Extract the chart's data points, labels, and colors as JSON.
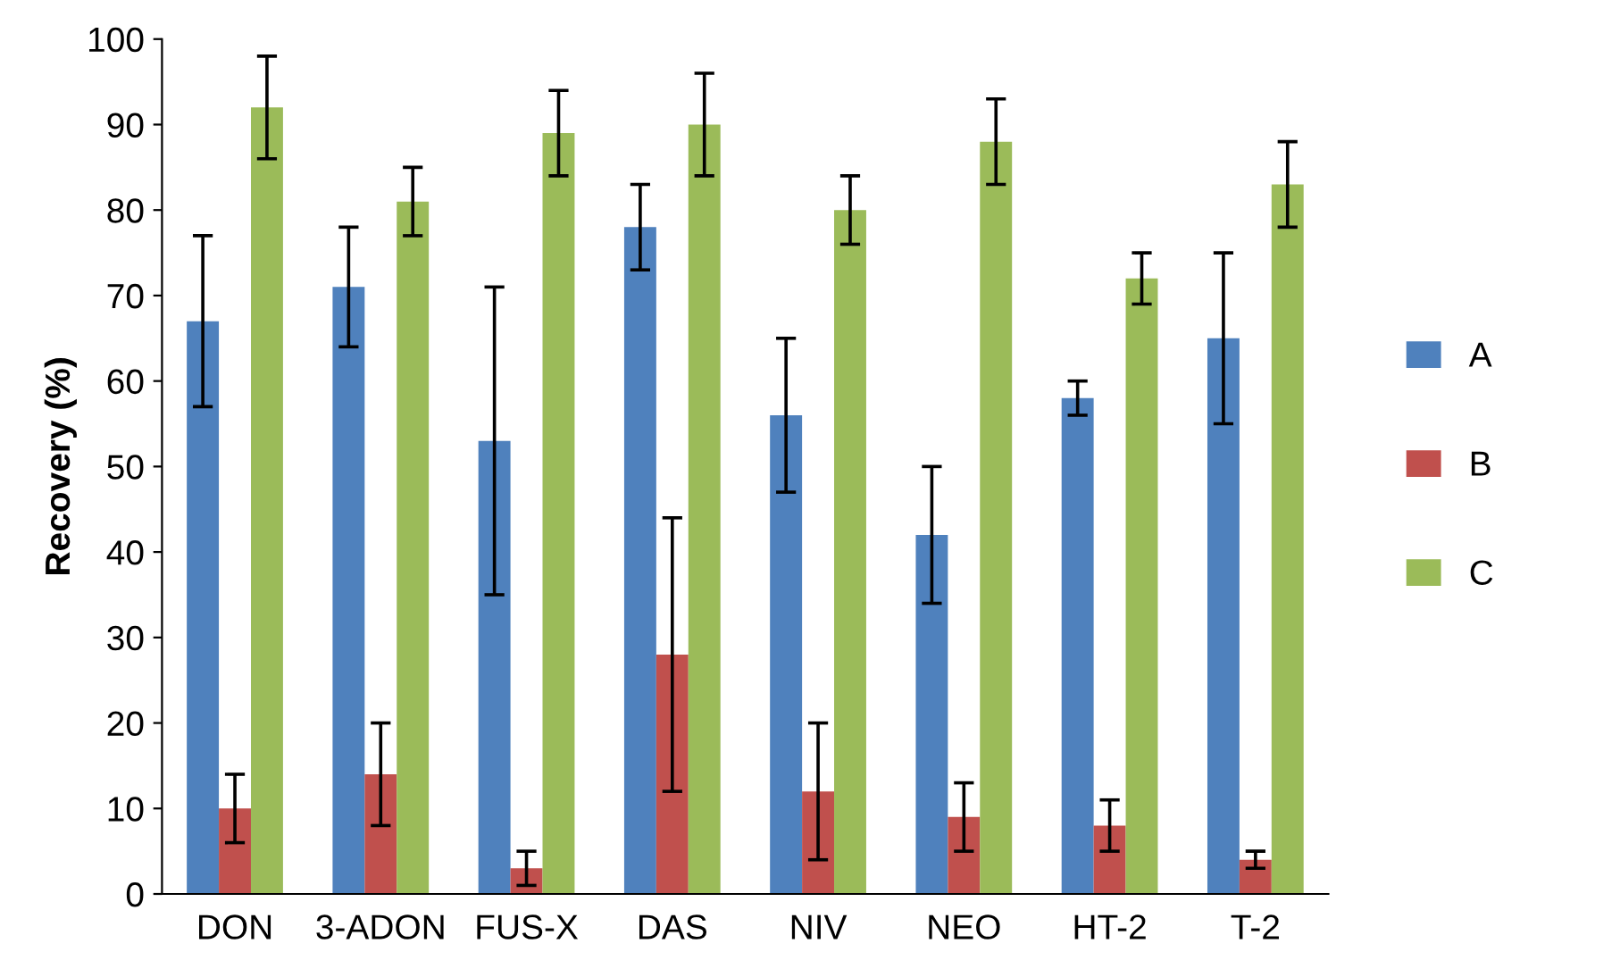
{
  "chart_data": {
    "type": "bar",
    "ylabel": "Recovery (%)",
    "categories": [
      "DON",
      "3-ADON",
      "FUS-X",
      "DAS",
      "NIV",
      "NEO",
      "HT-2",
      "T-2"
    ],
    "series": [
      {
        "name": "A",
        "color": "#4f81bd",
        "values": [
          67,
          71,
          53,
          78,
          56,
          42,
          58,
          65
        ],
        "errors": [
          10,
          7,
          18,
          5,
          9,
          8,
          2,
          10
        ]
      },
      {
        "name": "B",
        "color": "#c0504d",
        "values": [
          10,
          14,
          3,
          28,
          12,
          9,
          8,
          4
        ],
        "errors": [
          4,
          6,
          2,
          16,
          8,
          4,
          3,
          1
        ]
      },
      {
        "name": "C",
        "color": "#9bbb59",
        "values": [
          92,
          81,
          89,
          90,
          80,
          88,
          72,
          83
        ],
        "errors": [
          6,
          4,
          5,
          6,
          4,
          5,
          3,
          5
        ]
      }
    ],
    "ylim": [
      0,
      100
    ],
    "yticks": [
      0,
      10,
      20,
      30,
      40,
      50,
      60,
      70,
      80,
      90,
      100
    ],
    "grid": false,
    "legend": "right"
  }
}
